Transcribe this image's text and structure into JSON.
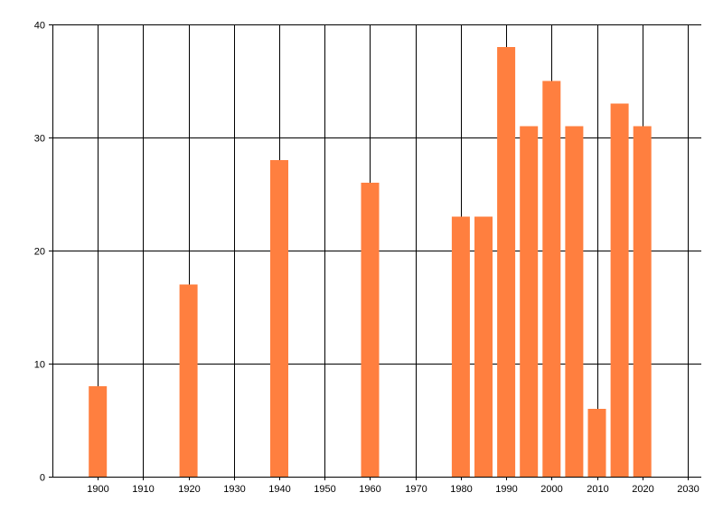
{
  "chart_data": {
    "type": "bar",
    "title": "",
    "xlabel": "",
    "ylabel": "",
    "x": [
      1900,
      1920,
      1940,
      1960,
      1980,
      1985,
      1990,
      1995,
      2000,
      2005,
      2010,
      2015,
      2020
    ],
    "values": [
      8,
      17,
      28,
      26,
      23,
      23,
      38,
      31,
      35,
      31,
      6,
      33,
      31
    ],
    "xlim": [
      1890,
      2033
    ],
    "ylim": [
      0,
      40
    ],
    "x_ticks": [
      1900,
      1910,
      1920,
      1930,
      1940,
      1950,
      1960,
      1970,
      1980,
      1990,
      2000,
      2010,
      2020,
      2030
    ],
    "y_ticks": [
      0,
      10,
      20,
      30,
      40
    ],
    "grid": true,
    "legend": "none",
    "bar_color": "#ff7f3f",
    "grid_color": "#000000"
  }
}
